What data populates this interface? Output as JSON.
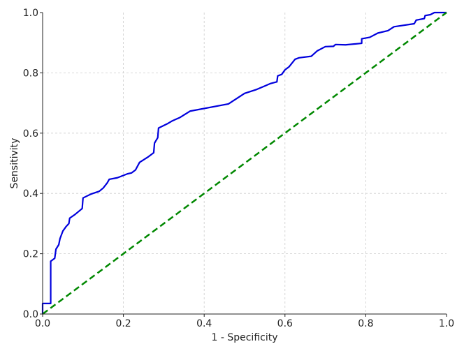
{
  "chart_data": {
    "type": "line",
    "title": "",
    "xlabel": "1 - Specificity",
    "ylabel": "Sensitivity",
    "xlim": [
      0,
      1
    ],
    "ylim": [
      0,
      1
    ],
    "xticks": [
      "0.0",
      "0.2",
      "0.4",
      "0.6",
      "0.8",
      "1.0"
    ],
    "yticks": [
      "0.0",
      "0.2",
      "0.4",
      "0.6",
      "0.8",
      "1.0"
    ],
    "grid": true,
    "series": [
      {
        "color": "#0000dd",
        "style": "solid",
        "points": [
          [
            0.0,
            0.0
          ],
          [
            0.0,
            0.035
          ],
          [
            0.02,
            0.035
          ],
          [
            0.02,
            0.175
          ],
          [
            0.03,
            0.185
          ],
          [
            0.033,
            0.215
          ],
          [
            0.04,
            0.23
          ],
          [
            0.043,
            0.25
          ],
          [
            0.05,
            0.275
          ],
          [
            0.058,
            0.29
          ],
          [
            0.065,
            0.3
          ],
          [
            0.067,
            0.318
          ],
          [
            0.08,
            0.33
          ],
          [
            0.098,
            0.35
          ],
          [
            0.1,
            0.385
          ],
          [
            0.12,
            0.398
          ],
          [
            0.14,
            0.407
          ],
          [
            0.15,
            0.418
          ],
          [
            0.16,
            0.435
          ],
          [
            0.165,
            0.447
          ],
          [
            0.185,
            0.452
          ],
          [
            0.21,
            0.465
          ],
          [
            0.22,
            0.468
          ],
          [
            0.23,
            0.478
          ],
          [
            0.24,
            0.503
          ],
          [
            0.26,
            0.52
          ],
          [
            0.275,
            0.535
          ],
          [
            0.277,
            0.567
          ],
          [
            0.285,
            0.585
          ],
          [
            0.287,
            0.617
          ],
          [
            0.31,
            0.632
          ],
          [
            0.32,
            0.64
          ],
          [
            0.34,
            0.652
          ],
          [
            0.365,
            0.673
          ],
          [
            0.46,
            0.697
          ],
          [
            0.5,
            0.732
          ],
          [
            0.53,
            0.745
          ],
          [
            0.565,
            0.765
          ],
          [
            0.58,
            0.77
          ],
          [
            0.582,
            0.79
          ],
          [
            0.592,
            0.795
          ],
          [
            0.6,
            0.81
          ],
          [
            0.61,
            0.82
          ],
          [
            0.625,
            0.845
          ],
          [
            0.635,
            0.85
          ],
          [
            0.665,
            0.855
          ],
          [
            0.68,
            0.873
          ],
          [
            0.7,
            0.887
          ],
          [
            0.72,
            0.888
          ],
          [
            0.725,
            0.894
          ],
          [
            0.75,
            0.893
          ],
          [
            0.79,
            0.898
          ],
          [
            0.79,
            0.913
          ],
          [
            0.81,
            0.918
          ],
          [
            0.83,
            0.932
          ],
          [
            0.855,
            0.94
          ],
          [
            0.87,
            0.953
          ],
          [
            0.92,
            0.963
          ],
          [
            0.925,
            0.975
          ],
          [
            0.945,
            0.98
          ],
          [
            0.947,
            0.99
          ],
          [
            0.96,
            0.993
          ],
          [
            0.97,
            1.0
          ],
          [
            1.0,
            1.0
          ]
        ]
      },
      {
        "color": "#008800",
        "style": "dashed",
        "points": [
          [
            0,
            0
          ],
          [
            1,
            1
          ]
        ]
      }
    ]
  }
}
